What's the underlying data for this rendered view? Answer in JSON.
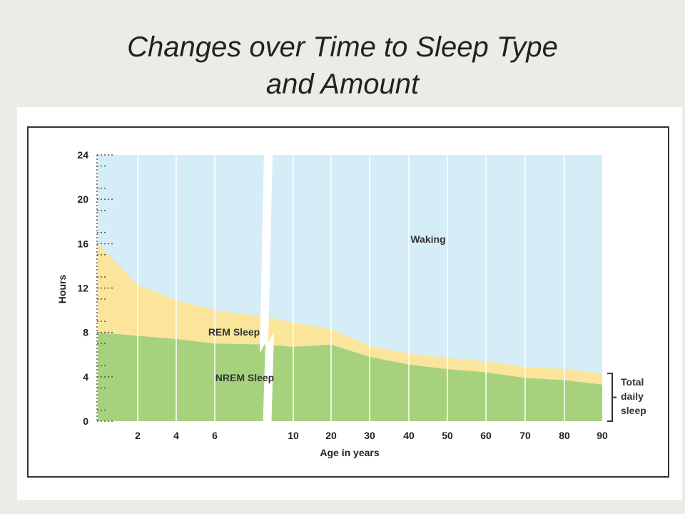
{
  "slide": {
    "title_line1": "Changes over Time to Sleep Type",
    "title_line2": "and Amount"
  },
  "chart_data": {
    "type": "area",
    "stacked": true,
    "title": "Changes over Time to Sleep Type and Amount",
    "xlabel": "Age in years",
    "ylabel": "Hours",
    "ylim": [
      0,
      24
    ],
    "y_ticks": [
      0,
      4,
      8,
      12,
      16,
      20,
      24
    ],
    "x_tick_labels": [
      "2",
      "4",
      "6",
      "10",
      "20",
      "30",
      "40",
      "50",
      "60",
      "70",
      "80",
      "90"
    ],
    "x_note": "Axis is non-linear with a break between 6 and 10",
    "x": [
      "0",
      "2",
      "4",
      "6",
      "8",
      "10",
      "20",
      "30",
      "40",
      "50",
      "60",
      "70",
      "80",
      "90"
    ],
    "series": [
      {
        "name": "NREM Sleep",
        "values": [
          8.0,
          7.7,
          7.4,
          7.0,
          6.9,
          6.7,
          6.9,
          5.8,
          5.1,
          4.7,
          4.4,
          3.9,
          3.7,
          3.3
        ]
      },
      {
        "name": "REM Sleep",
        "values": [
          8.0,
          4.6,
          3.5,
          3.0,
          2.5,
          2.2,
          1.4,
          1.0,
          1.0,
          1.0,
          1.0,
          1.0,
          1.0,
          1.0
        ]
      }
    ],
    "top_region_label": "Waking",
    "total_total_label": [
      "Total",
      "daily",
      "sleep"
    ],
    "colors": {
      "waking": "#d5edf7",
      "rem": "#fbe59b",
      "nrem": "#a6d27e"
    },
    "grid": "vertical"
  }
}
